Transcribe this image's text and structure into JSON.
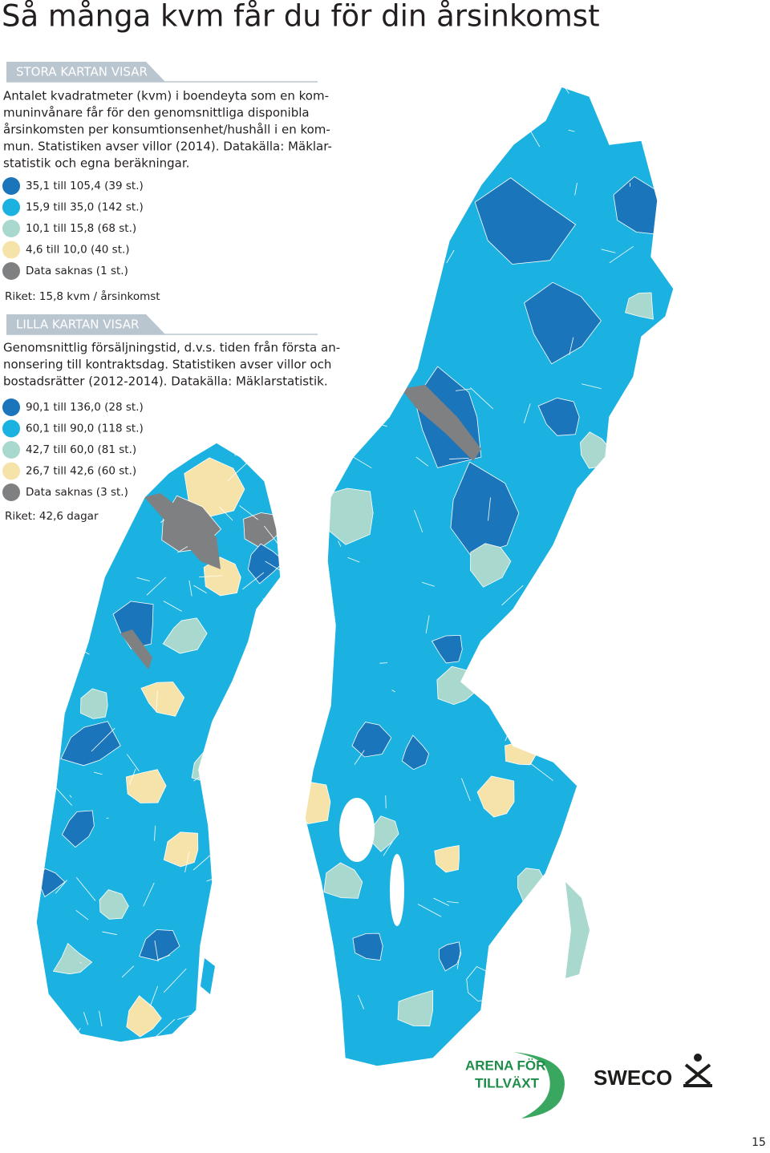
{
  "title": "Så många kvm får du för din årsinkomst",
  "big_map": {
    "header": "STORA KARTAN VISAR",
    "description_lines": [
      "Antalet kvadratmeter (kvm) i boendeyta som en kom-",
      "muninvånare får för den genomsnittliga disponibla",
      "årsinkomsten per konsumtionsenhet/hushåll i en kom-",
      "mun. Statistiken avser villor (2014). Datakälla: Mäklar-",
      "statistik och egna beräkningar."
    ],
    "legend": [
      {
        "label": "35,1 till 105,4 (39 st.)",
        "color": "#1a75bb"
      },
      {
        "label": "15,9 till 35,0 (142 st.)",
        "color": "#1bb1e0"
      },
      {
        "label": "10,1 till 15,8 (68 st.)",
        "color": "#a9d8cf"
      },
      {
        "label": "4,6 till 10,0 (40 st.)",
        "color": "#f6e3a9"
      },
      {
        "label": "Data saknas (1 st.)",
        "color": "#7f8081"
      }
    ],
    "note": "Riket: 15,8 kvm / årsinkomst"
  },
  "small_map": {
    "header": "LILLA KARTAN VISAR",
    "description_lines": [
      "Genomsnittlig försäljningstid, d.v.s. tiden från första an-",
      "nonsering till kontraktsdag. Statistiken avser villor och",
      "bostadsrätter (2012-2014). Datakälla: Mäklarstatistik."
    ],
    "legend": [
      {
        "label": "90,1 till 136,0 (28 st.)",
        "color": "#1a75bb"
      },
      {
        "label": "60,1 till 90,0 (118 st.)",
        "color": "#1bb1e0"
      },
      {
        "label": "42,7 till 60,0 (81 st.)",
        "color": "#a9d8cf"
      },
      {
        "label": "26,7 till 42,6 (60 st.)",
        "color": "#f6e3a9"
      },
      {
        "label": "Data saknas (3 st.)",
        "color": "#7f8081"
      }
    ],
    "note": "Riket: 42,6 dagar"
  },
  "logos": {
    "arena_line1": "ARENA FÖR",
    "arena_line2": "TILLVÄXT",
    "sweco": "SWECO"
  },
  "page_number": "15"
}
